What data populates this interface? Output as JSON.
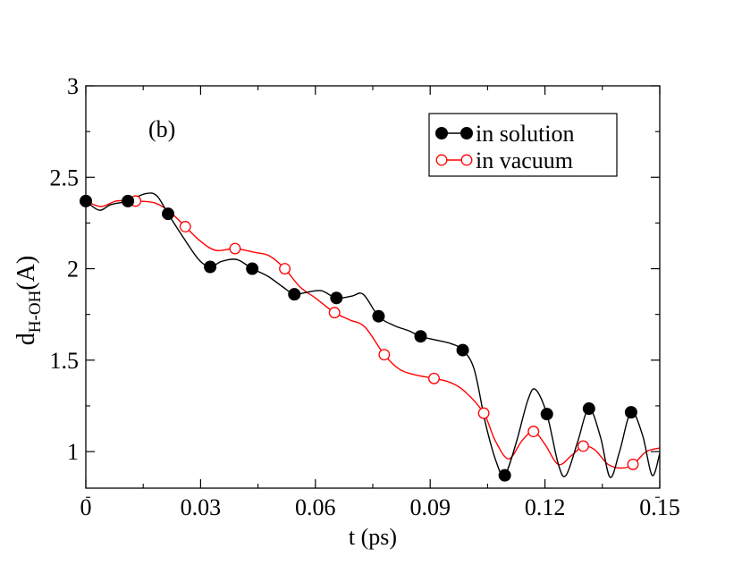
{
  "chart_data": {
    "type": "line",
    "panel_label": "(b)",
    "xlabel": "t (ps)",
    "ylabel": {
      "main": "d",
      "sub": "H-OH",
      "unit": "(A)"
    },
    "xlim": [
      0,
      0.15
    ],
    "ylim": [
      0.8,
      3.0
    ],
    "xticks": [
      0,
      0.03,
      0.06,
      0.09,
      0.12,
      0.15
    ],
    "xtick_labels": [
      "0",
      "0.03",
      "0.06",
      "0.09",
      "0.12",
      "0.15"
    ],
    "yticks": [
      1,
      1.5,
      2,
      2.5,
      3
    ],
    "ytick_labels": [
      "1",
      "1.5",
      "2",
      "2.5",
      "3"
    ],
    "grid": false,
    "legend_position": "top-right",
    "series": [
      {
        "name": "in solution",
        "color": "#000000",
        "marker": "filled-circle",
        "markers": [
          [
            0.0,
            2.37
          ],
          [
            0.011,
            2.37
          ],
          [
            0.0215,
            2.3
          ],
          [
            0.0325,
            2.01
          ],
          [
            0.0435,
            2.0
          ],
          [
            0.0545,
            1.86
          ],
          [
            0.0655,
            1.84
          ],
          [
            0.0765,
            1.74
          ],
          [
            0.0875,
            1.63
          ],
          [
            0.0985,
            1.555
          ],
          [
            0.1095,
            0.87
          ],
          [
            0.1205,
            1.205
          ],
          [
            0.1315,
            1.235
          ],
          [
            0.1425,
            1.215
          ]
        ],
        "curve": [
          [
            0.0,
            2.37
          ],
          [
            0.0035,
            2.32
          ],
          [
            0.0065,
            2.35
          ],
          [
            0.011,
            2.37
          ],
          [
            0.0155,
            2.41
          ],
          [
            0.0185,
            2.4
          ],
          [
            0.0215,
            2.3
          ],
          [
            0.0255,
            2.17
          ],
          [
            0.0295,
            2.05
          ],
          [
            0.0325,
            2.01
          ],
          [
            0.0355,
            2.04
          ],
          [
            0.0395,
            2.05
          ],
          [
            0.0435,
            2.0
          ],
          [
            0.0475,
            1.96
          ],
          [
            0.0515,
            1.9
          ],
          [
            0.0545,
            1.86
          ],
          [
            0.0575,
            1.87
          ],
          [
            0.0615,
            1.88
          ],
          [
            0.0655,
            1.84
          ],
          [
            0.0695,
            1.85
          ],
          [
            0.0725,
            1.86
          ],
          [
            0.0765,
            1.74
          ],
          [
            0.0805,
            1.69
          ],
          [
            0.0845,
            1.66
          ],
          [
            0.0875,
            1.63
          ],
          [
            0.0915,
            1.61
          ],
          [
            0.0955,
            1.59
          ],
          [
            0.0985,
            1.555
          ],
          [
            0.1015,
            1.45
          ],
          [
            0.1045,
            1.15
          ],
          [
            0.1075,
            0.93
          ],
          [
            0.1095,
            0.87
          ],
          [
            0.1125,
            1.05
          ],
          [
            0.1155,
            1.28
          ],
          [
            0.1175,
            1.34
          ],
          [
            0.1205,
            1.205
          ],
          [
            0.1235,
            0.93
          ],
          [
            0.1255,
            0.87
          ],
          [
            0.1285,
            1.05
          ],
          [
            0.1315,
            1.235
          ],
          [
            0.1345,
            1.08
          ],
          [
            0.137,
            0.86
          ],
          [
            0.1395,
            1.0
          ],
          [
            0.1425,
            1.215
          ],
          [
            0.1455,
            1.09
          ],
          [
            0.148,
            0.87
          ],
          [
            0.15,
            0.99
          ]
        ]
      },
      {
        "name": "in vacuum",
        "color": "#ff0000",
        "marker": "open-circle",
        "markers": [
          [
            0.0,
            2.37
          ],
          [
            0.013,
            2.37
          ],
          [
            0.026,
            2.23
          ],
          [
            0.039,
            2.11
          ],
          [
            0.052,
            2.0
          ],
          [
            0.065,
            1.76
          ],
          [
            0.078,
            1.53
          ],
          [
            0.091,
            1.4
          ],
          [
            0.104,
            1.21
          ],
          [
            0.117,
            1.11
          ],
          [
            0.13,
            1.03
          ],
          [
            0.143,
            0.93
          ]
        ],
        "curve": [
          [
            0.0,
            2.37
          ],
          [
            0.004,
            2.34
          ],
          [
            0.008,
            2.37
          ],
          [
            0.013,
            2.37
          ],
          [
            0.018,
            2.36
          ],
          [
            0.022,
            2.31
          ],
          [
            0.026,
            2.23
          ],
          [
            0.03,
            2.15
          ],
          [
            0.034,
            2.1
          ],
          [
            0.039,
            2.11
          ],
          [
            0.044,
            2.09
          ],
          [
            0.048,
            2.07
          ],
          [
            0.052,
            2.0
          ],
          [
            0.056,
            1.9
          ],
          [
            0.06,
            1.84
          ],
          [
            0.065,
            1.76
          ],
          [
            0.069,
            1.72
          ],
          [
            0.073,
            1.68
          ],
          [
            0.078,
            1.53
          ],
          [
            0.082,
            1.45
          ],
          [
            0.086,
            1.42
          ],
          [
            0.091,
            1.4
          ],
          [
            0.095,
            1.38
          ],
          [
            0.099,
            1.33
          ],
          [
            0.104,
            1.21
          ],
          [
            0.107,
            1.06
          ],
          [
            0.1105,
            0.96
          ],
          [
            0.114,
            1.06
          ],
          [
            0.117,
            1.11
          ],
          [
            0.12,
            1.04
          ],
          [
            0.1235,
            0.93
          ],
          [
            0.127,
            0.98
          ],
          [
            0.13,
            1.03
          ],
          [
            0.133,
            1.01
          ],
          [
            0.1365,
            0.93
          ],
          [
            0.14,
            0.91
          ],
          [
            0.143,
            0.93
          ],
          [
            0.1465,
            1.0
          ],
          [
            0.15,
            1.02
          ]
        ]
      }
    ]
  }
}
